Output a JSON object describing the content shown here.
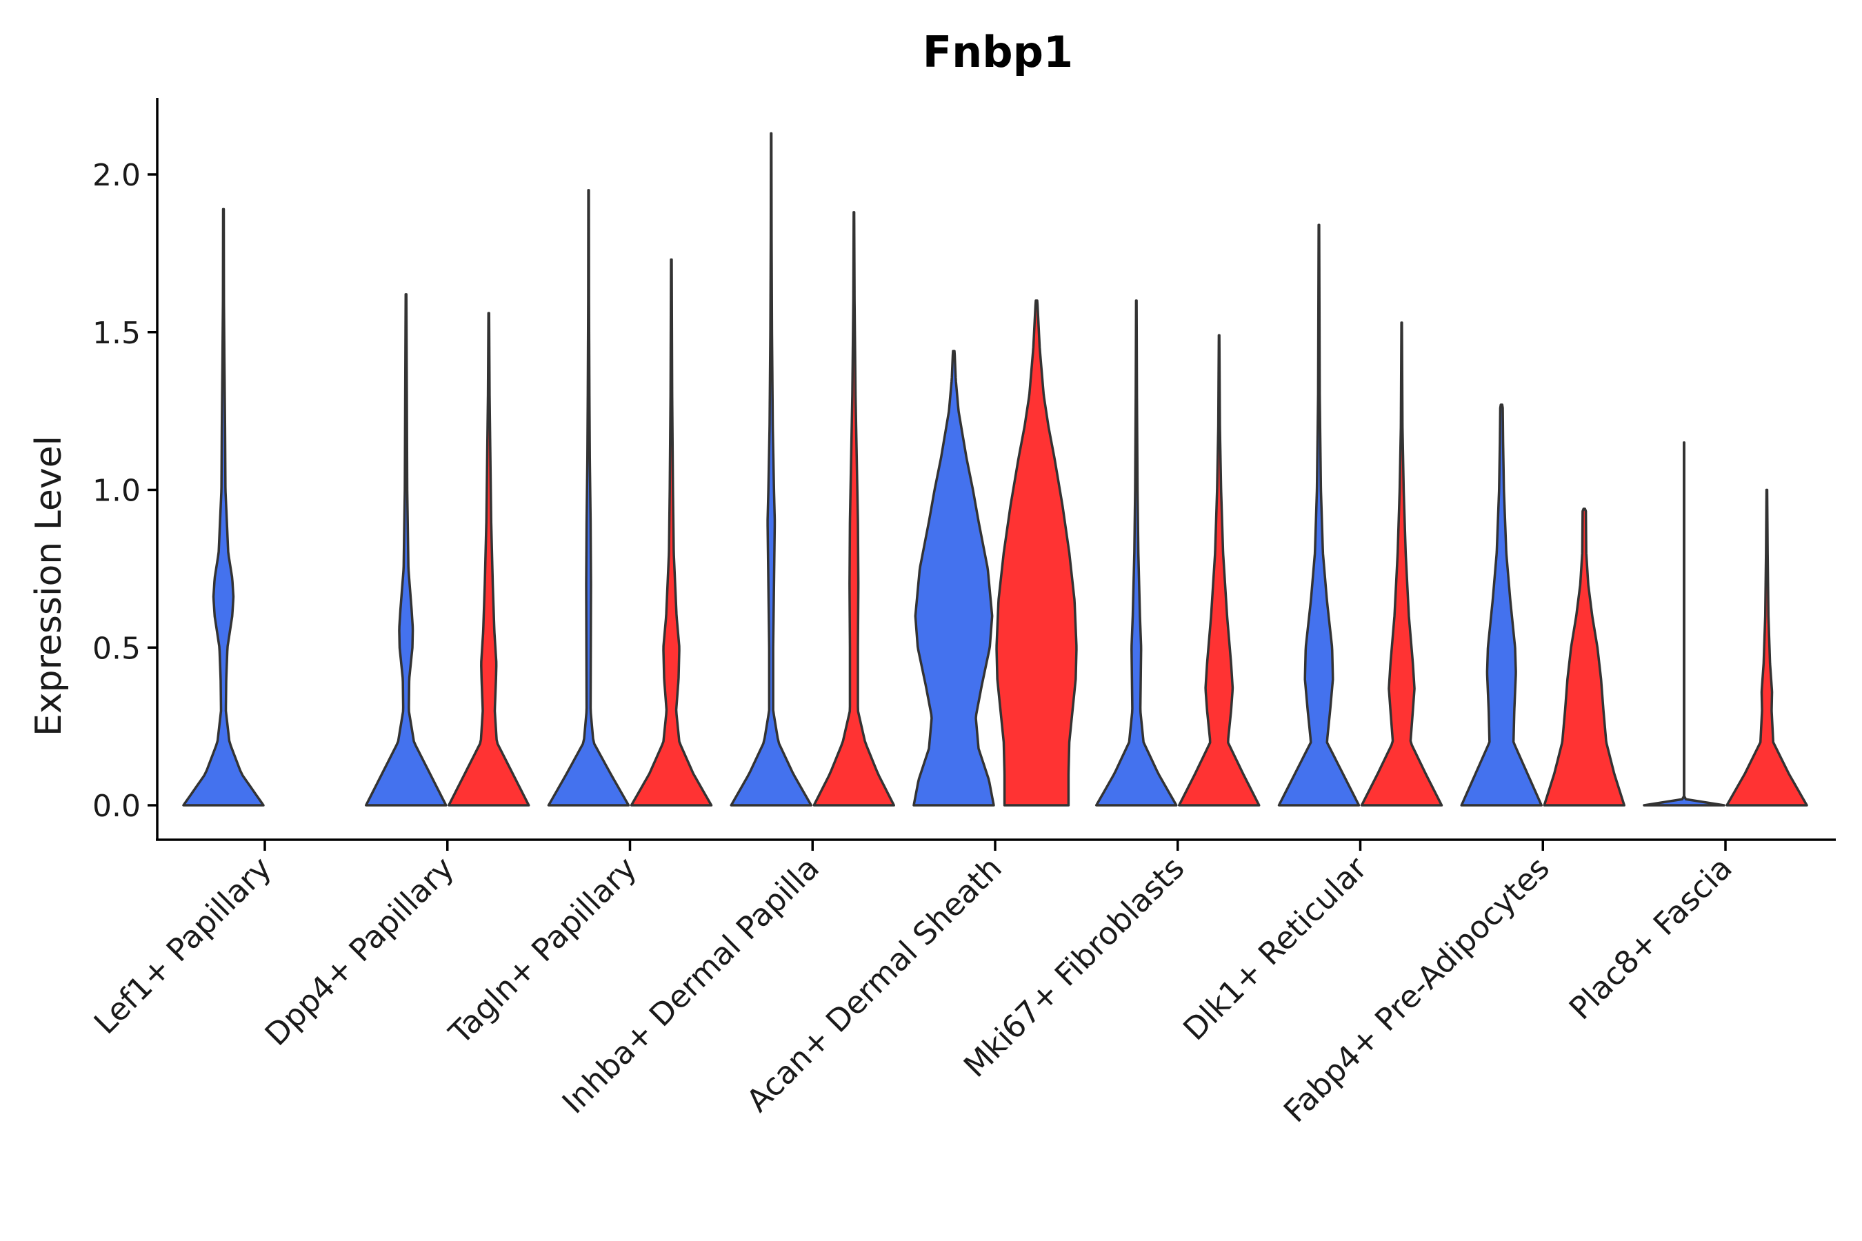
{
  "chart_data": {
    "type": "violin",
    "title": "Fnbp1",
    "xlabel": "",
    "ylabel": "Expression Level",
    "ylim": [
      -0.11,
      2.25
    ],
    "yticks": [
      0.0,
      0.5,
      1.0,
      1.5,
      2.0
    ],
    "ytick_labels": [
      "0.0",
      "0.5",
      "1.0",
      "1.5",
      "2.0"
    ],
    "grid": false,
    "legend": "none",
    "group_colors": {
      "blue": "#4472EE",
      "red": "#FF3333"
    },
    "categories": [
      "Lef1+ Papillary",
      "Dpp4+ Papillary",
      "Tagln+ Papillary",
      "Inhba+ Dermal Papilla",
      "Acan+ Dermal Sheath",
      "Mki67+ Fibroblasts",
      "Dlk1+ Reticular",
      "Fabp4+ Pre-Adipocytes",
      "Plac8+ Fascia"
    ],
    "violins": [
      {
        "category": "Lef1+ Papillary",
        "group": "blue",
        "max": 1.89,
        "profile": [
          [
            0,
            1.0
          ],
          [
            0.1,
            0.45
          ],
          [
            0.2,
            0.15
          ],
          [
            0.3,
            0.06
          ],
          [
            0.4,
            0.07
          ],
          [
            0.5,
            0.1
          ],
          [
            0.6,
            0.22
          ],
          [
            0.66,
            0.25
          ],
          [
            0.72,
            0.22
          ],
          [
            0.8,
            0.12
          ],
          [
            1.0,
            0.05
          ],
          [
            1.2,
            0.04
          ],
          [
            1.4,
            0.025
          ],
          [
            1.6,
            0.012
          ],
          [
            1.89,
            0.008
          ]
        ]
      },
      {
        "category": "Dpp4+ Papillary",
        "group": "blue",
        "max": 1.62,
        "profile": [
          [
            0,
            1.0
          ],
          [
            0.1,
            0.6
          ],
          [
            0.2,
            0.2
          ],
          [
            0.3,
            0.07
          ],
          [
            0.4,
            0.08
          ],
          [
            0.5,
            0.16
          ],
          [
            0.56,
            0.17
          ],
          [
            0.62,
            0.14
          ],
          [
            0.75,
            0.06
          ],
          [
            1.0,
            0.03
          ],
          [
            1.3,
            0.02
          ],
          [
            1.62,
            0.008
          ]
        ]
      },
      {
        "category": "Dpp4+ Papillary",
        "group": "red",
        "max": 1.56,
        "profile": [
          [
            0,
            1.0
          ],
          [
            0.1,
            0.6
          ],
          [
            0.2,
            0.2
          ],
          [
            0.3,
            0.15
          ],
          [
            0.4,
            0.18
          ],
          [
            0.45,
            0.19
          ],
          [
            0.55,
            0.14
          ],
          [
            0.7,
            0.1
          ],
          [
            0.9,
            0.06
          ],
          [
            1.1,
            0.04
          ],
          [
            1.3,
            0.02
          ],
          [
            1.56,
            0.008
          ]
        ]
      },
      {
        "category": "Tagln+ Papillary",
        "group": "blue",
        "max": 1.95,
        "profile": [
          [
            0,
            1.0
          ],
          [
            0.1,
            0.55
          ],
          [
            0.2,
            0.12
          ],
          [
            0.3,
            0.05
          ],
          [
            0.5,
            0.055
          ],
          [
            0.7,
            0.06
          ],
          [
            0.9,
            0.05
          ],
          [
            1.1,
            0.03
          ],
          [
            1.3,
            0.02
          ],
          [
            1.6,
            0.01
          ],
          [
            1.95,
            0.006
          ]
        ]
      },
      {
        "category": "Tagln+ Papillary",
        "group": "red",
        "max": 1.73,
        "profile": [
          [
            0,
            1.0
          ],
          [
            0.1,
            0.55
          ],
          [
            0.2,
            0.2
          ],
          [
            0.3,
            0.12
          ],
          [
            0.4,
            0.18
          ],
          [
            0.5,
            0.2
          ],
          [
            0.6,
            0.13
          ],
          [
            0.8,
            0.06
          ],
          [
            1.0,
            0.04
          ],
          [
            1.3,
            0.02
          ],
          [
            1.73,
            0.008
          ]
        ]
      },
      {
        "category": "Inhba+ Dermal Papilla",
        "group": "blue",
        "max": 2.13,
        "profile": [
          [
            0,
            1.0
          ],
          [
            0.1,
            0.55
          ],
          [
            0.2,
            0.18
          ],
          [
            0.3,
            0.05
          ],
          [
            0.5,
            0.05
          ],
          [
            0.7,
            0.07
          ],
          [
            0.9,
            0.09
          ],
          [
            1.0,
            0.07
          ],
          [
            1.2,
            0.04
          ],
          [
            1.5,
            0.02
          ],
          [
            1.8,
            0.01
          ],
          [
            2.13,
            0.005
          ]
        ]
      },
      {
        "category": "Inhba+ Dermal Papilla",
        "group": "red",
        "max": 1.88,
        "profile": [
          [
            0,
            1.0
          ],
          [
            0.1,
            0.6
          ],
          [
            0.2,
            0.28
          ],
          [
            0.3,
            0.1
          ],
          [
            0.5,
            0.1
          ],
          [
            0.7,
            0.11
          ],
          [
            0.9,
            0.1
          ],
          [
            1.1,
            0.07
          ],
          [
            1.3,
            0.04
          ],
          [
            1.6,
            0.015
          ],
          [
            1.88,
            0.006
          ]
        ]
      },
      {
        "category": "Acan+ Dermal Sheath",
        "group": "blue",
        "max": 1.44,
        "profile": [
          [
            0,
            1.0
          ],
          [
            0.08,
            0.88
          ],
          [
            0.18,
            0.62
          ],
          [
            0.28,
            0.55
          ],
          [
            0.38,
            0.7
          ],
          [
            0.5,
            0.9
          ],
          [
            0.6,
            0.96
          ],
          [
            0.75,
            0.85
          ],
          [
            0.9,
            0.62
          ],
          [
            1.0,
            0.48
          ],
          [
            1.1,
            0.32
          ],
          [
            1.25,
            0.12
          ],
          [
            1.35,
            0.05
          ],
          [
            1.44,
            0.02
          ]
        ]
      },
      {
        "category": "Acan+ Dermal Sheath",
        "group": "red",
        "max": 1.6,
        "profile": [
          [
            0,
            0.8
          ],
          [
            0.1,
            0.8
          ],
          [
            0.2,
            0.82
          ],
          [
            0.3,
            0.9
          ],
          [
            0.4,
            0.98
          ],
          [
            0.5,
            1.0
          ],
          [
            0.65,
            0.95
          ],
          [
            0.8,
            0.82
          ],
          [
            0.95,
            0.65
          ],
          [
            1.1,
            0.45
          ],
          [
            1.2,
            0.3
          ],
          [
            1.3,
            0.18
          ],
          [
            1.45,
            0.08
          ],
          [
            1.6,
            0.02
          ]
        ]
      },
      {
        "category": "Mki67+ Fibroblasts",
        "group": "blue",
        "max": 1.6,
        "profile": [
          [
            0,
            1.0
          ],
          [
            0.1,
            0.55
          ],
          [
            0.2,
            0.18
          ],
          [
            0.3,
            0.1
          ],
          [
            0.5,
            0.12
          ],
          [
            0.6,
            0.09
          ],
          [
            0.8,
            0.05
          ],
          [
            1.0,
            0.03
          ],
          [
            1.3,
            0.015
          ],
          [
            1.6,
            0.006
          ]
        ]
      },
      {
        "category": "Mki67+ Fibroblasts",
        "group": "red",
        "max": 1.49,
        "profile": [
          [
            0,
            1.0
          ],
          [
            0.1,
            0.6
          ],
          [
            0.2,
            0.22
          ],
          [
            0.3,
            0.3
          ],
          [
            0.37,
            0.34
          ],
          [
            0.45,
            0.3
          ],
          [
            0.6,
            0.2
          ],
          [
            0.8,
            0.1
          ],
          [
            1.0,
            0.05
          ],
          [
            1.2,
            0.02
          ],
          [
            1.49,
            0.006
          ]
        ]
      },
      {
        "category": "Dlk1+ Reticular",
        "group": "blue",
        "max": 1.84,
        "profile": [
          [
            0,
            1.0
          ],
          [
            0.1,
            0.6
          ],
          [
            0.2,
            0.2
          ],
          [
            0.3,
            0.28
          ],
          [
            0.4,
            0.35
          ],
          [
            0.5,
            0.33
          ],
          [
            0.65,
            0.2
          ],
          [
            0.8,
            0.1
          ],
          [
            1.0,
            0.05
          ],
          [
            1.3,
            0.02
          ],
          [
            1.84,
            0.006
          ]
        ]
      },
      {
        "category": "Dlk1+ Reticular",
        "group": "red",
        "max": 1.53,
        "profile": [
          [
            0,
            1.0
          ],
          [
            0.1,
            0.6
          ],
          [
            0.2,
            0.22
          ],
          [
            0.3,
            0.28
          ],
          [
            0.37,
            0.32
          ],
          [
            0.45,
            0.28
          ],
          [
            0.6,
            0.18
          ],
          [
            0.8,
            0.1
          ],
          [
            1.0,
            0.05
          ],
          [
            1.2,
            0.02
          ],
          [
            1.53,
            0.006
          ]
        ]
      },
      {
        "category": "Fabp4+ Pre-Adipocytes",
        "group": "blue",
        "max": 1.27,
        "profile": [
          [
            0,
            1.0
          ],
          [
            0.1,
            0.65
          ],
          [
            0.2,
            0.3
          ],
          [
            0.3,
            0.32
          ],
          [
            0.42,
            0.36
          ],
          [
            0.5,
            0.34
          ],
          [
            0.65,
            0.22
          ],
          [
            0.8,
            0.12
          ],
          [
            1.0,
            0.06
          ],
          [
            1.15,
            0.04
          ],
          [
            1.27,
            0.03
          ]
        ]
      },
      {
        "category": "Fabp4+ Pre-Adipocytes",
        "group": "red",
        "max": 0.94,
        "profile": [
          [
            0,
            1.0
          ],
          [
            0.1,
            0.75
          ],
          [
            0.2,
            0.55
          ],
          [
            0.3,
            0.48
          ],
          [
            0.4,
            0.42
          ],
          [
            0.5,
            0.33
          ],
          [
            0.6,
            0.2
          ],
          [
            0.7,
            0.1
          ],
          [
            0.8,
            0.05
          ],
          [
            0.94,
            0.04
          ]
        ]
      },
      {
        "category": "Plac8+ Fascia",
        "group": "blue",
        "max": 1.15,
        "profile": [
          [
            0,
            1.0
          ],
          [
            0.02,
            0.004
          ],
          [
            0.1,
            0.004
          ],
          [
            0.5,
            0.004
          ],
          [
            1.0,
            0.004
          ],
          [
            1.15,
            0.004
          ]
        ]
      },
      {
        "category": "Plac8+ Fascia",
        "group": "red",
        "max": 1.0,
        "profile": [
          [
            0,
            1.0
          ],
          [
            0.1,
            0.55
          ],
          [
            0.2,
            0.16
          ],
          [
            0.3,
            0.12
          ],
          [
            0.36,
            0.13
          ],
          [
            0.45,
            0.08
          ],
          [
            0.6,
            0.04
          ],
          [
            0.8,
            0.02
          ],
          [
            1.0,
            0.008
          ]
        ]
      }
    ]
  }
}
